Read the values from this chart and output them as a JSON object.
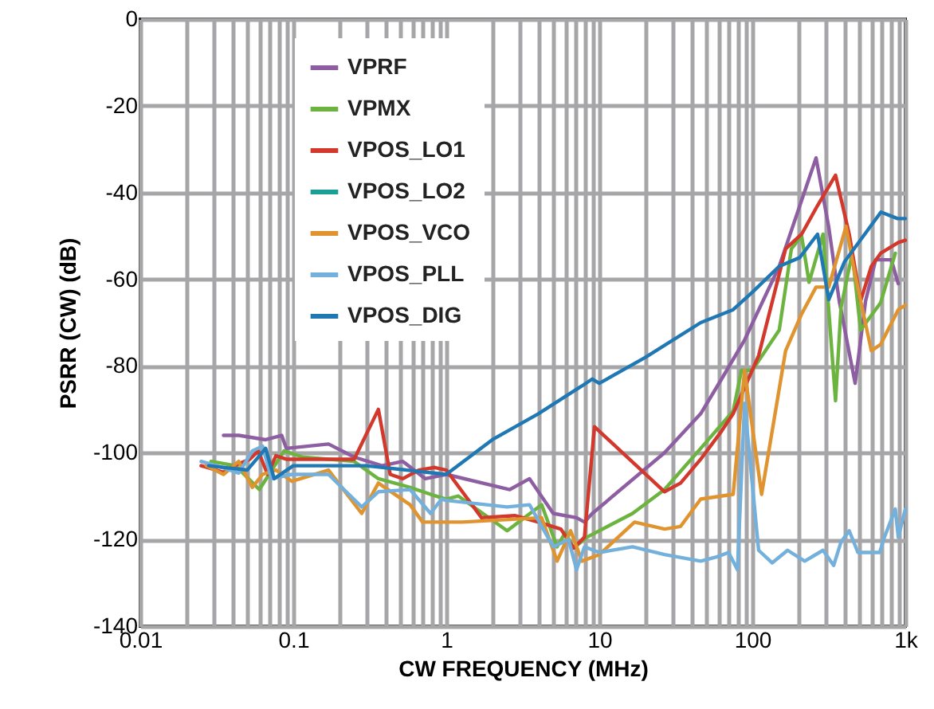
{
  "chart_data": {
    "type": "line",
    "xlabel": "CW FREQUENCY (MHz)",
    "ylabel": "PSRR (CW) (dB)",
    "log": "x",
    "grid": true,
    "legend": "top left",
    "line_style": "solid",
    "xlim": [
      0.01,
      1000
    ],
    "ylim": [
      -140,
      0
    ],
    "xticks": [
      0.01,
      {
        "value": 0.02,
        "label": null
      },
      {
        "value": 0.03,
        "label": null
      },
      {
        "value": 0.04,
        "label": null
      },
      {
        "value": 0.05,
        "label": null
      },
      {
        "value": 0.06,
        "label": null
      },
      {
        "value": 0.07,
        "label": null
      },
      {
        "value": 0.08,
        "label": null
      },
      {
        "value": 0.09,
        "label": null
      },
      0.1,
      {
        "value": 0.2,
        "label": null
      },
      {
        "value": 0.3,
        "label": null
      },
      {
        "value": 0.4,
        "label": null
      },
      {
        "value": 0.5,
        "label": null
      },
      {
        "value": 0.6,
        "label": null
      },
      {
        "value": 0.7,
        "label": null
      },
      {
        "value": 0.8,
        "label": null
      },
      {
        "value": 0.9,
        "label": null
      },
      1,
      {
        "value": 2,
        "label": null
      },
      {
        "value": 3,
        "label": null
      },
      {
        "value": 4,
        "label": null
      },
      {
        "value": 5,
        "label": null
      },
      {
        "value": 6,
        "label": null
      },
      {
        "value": 7,
        "label": null
      },
      {
        "value": 8,
        "label": null
      },
      {
        "value": 9,
        "label": null
      },
      10,
      {
        "value": 20,
        "label": null
      },
      {
        "value": 30,
        "label": null
      },
      {
        "value": 40,
        "label": null
      },
      {
        "value": 50,
        "label": null
      },
      {
        "value": 60,
        "label": null
      },
      {
        "value": 70,
        "label": null
      },
      {
        "value": 80,
        "label": null
      },
      {
        "value": 90,
        "label": null
      },
      100,
      {
        "value": 200,
        "label": null
      },
      {
        "value": 300,
        "label": null
      },
      {
        "value": 400,
        "label": null
      },
      {
        "value": 500,
        "label": null
      },
      {
        "value": 600,
        "label": null
      },
      {
        "value": 700,
        "label": null
      },
      {
        "value": 800,
        "label": null
      },
      {
        "value": 900,
        "label": null
      },
      {
        "value": 1000,
        "label": "1k"
      }
    ],
    "yticks": [
      -140,
      -120,
      -100,
      -80,
      -60,
      -40,
      -20,
      0
    ],
    "series": [
      {
        "name": "VPRF",
        "color": "#8e5ea2",
        "x": [
          0.035,
          0.044,
          0.066,
          0.084,
          0.09,
          0.17,
          0.25,
          0.38,
          0.52,
          0.73,
          1,
          2.6,
          3.5,
          5,
          7.1,
          8,
          9,
          26.7,
          46,
          63,
          89,
          150,
          261,
          316,
          370,
          470,
          550,
          640,
          810,
          900
        ],
        "values": [
          -96,
          -96,
          -97,
          -96,
          -99,
          -98,
          -101,
          -103,
          -102,
          -106,
          -105,
          -108.5,
          -106,
          -114,
          -115,
          -116,
          -114,
          -100,
          -91,
          -83,
          -74,
          -57,
          -32,
          -48,
          -65,
          -84,
          -65,
          -55.5,
          -55.5,
          -61
        ]
      },
      {
        "name": "VPMX",
        "color": "#6db33f",
        "x": [
          0.029,
          0.042,
          0.06,
          0.087,
          0.115,
          0.25,
          0.36,
          0.58,
          0.79,
          1,
          1.2,
          2.5,
          4.2,
          5.3,
          6,
          6.8,
          8.3,
          16.5,
          26.7,
          46,
          75,
          85,
          100,
          150,
          180,
          210,
          235,
          290,
          350,
          380,
          450,
          510,
          690,
          860
        ],
        "values": [
          -102,
          -103,
          -108.5,
          -99.6,
          -101,
          -102,
          -106,
          -108,
          -109.6,
          -110.7,
          -110,
          -118,
          -112,
          -121.7,
          -118.4,
          -122,
          -119.5,
          -114,
          -108.5,
          -99,
          -90.4,
          -81,
          -81,
          -71.7,
          -53,
          -50,
          -60.7,
          -49.6,
          -88,
          -66.5,
          -54,
          -71.7,
          -65.4,
          -54
        ]
      },
      {
        "name": "VPOS_LO1",
        "color": "#d2382b",
        "x": [
          0.025,
          0.035,
          0.041,
          0.052,
          0.059,
          0.068,
          0.077,
          0.09,
          0.25,
          0.36,
          0.43,
          0.52,
          0.66,
          0.84,
          1,
          1.7,
          2.8,
          4,
          5.6,
          6.8,
          8,
          9.3,
          26.7,
          34,
          46,
          63,
          75,
          110,
          165,
          210,
          267,
          350,
          430,
          510,
          600,
          690,
          900,
          1000
        ],
        "values": [
          -103,
          -104.5,
          -103,
          -101.5,
          -99.6,
          -105,
          -100.7,
          -101.5,
          -101.5,
          -90,
          -105,
          -106,
          -104,
          -103.4,
          -104,
          -115,
          -114.5,
          -116,
          -117.6,
          -122,
          -119.5,
          -94,
          -109,
          -107,
          -101.5,
          -95,
          -91,
          -77.6,
          -53,
          -49.6,
          -43,
          -36,
          -49.6,
          -65,
          -57,
          -54,
          -51.5,
          -51
        ]
      },
      {
        "name": "VPOS_LO2",
        "color": "#1a9e96"
      },
      {
        "name": "VPOS_VCO",
        "color": "#e0942f",
        "x": [
          0.027,
          0.035,
          0.044,
          0.054,
          0.063,
          0.077,
          0.098,
          0.17,
          0.28,
          0.36,
          0.58,
          0.7,
          1,
          1.27,
          4.2,
          5.3,
          6.5,
          7.7,
          10,
          17,
          26.7,
          34,
          46,
          75,
          89,
          115,
          165,
          210,
          261,
          316,
          410,
          470,
          600,
          690,
          900,
          1000
        ],
        "values": [
          -103,
          -105,
          -102,
          -108,
          -105,
          -104,
          -106.6,
          -104,
          -114,
          -107,
          -112,
          -116,
          -116,
          -116,
          -115,
          -125,
          -118,
          -125,
          -123.5,
          -116,
          -117.6,
          -117,
          -110.7,
          -109.6,
          -81,
          -109.6,
          -76.5,
          -68,
          -61.8,
          -61.8,
          -47.8,
          -59,
          -76.5,
          -75,
          -67,
          -66
        ]
      },
      {
        "name": "VPOS_PLL",
        "color": "#74b0dc",
        "x": [
          0.025,
          0.035,
          0.044,
          0.054,
          0.063,
          0.072,
          0.098,
          0.17,
          0.28,
          0.36,
          0.58,
          0.79,
          0.93,
          1,
          2.5,
          3.5,
          5,
          6.3,
          7.1,
          8,
          10,
          16.5,
          26.7,
          46,
          59,
          70,
          80,
          89,
          110,
          135,
          170,
          220,
          290,
          340,
          380,
          430,
          490,
          680,
          730,
          860,
          900,
          1000
        ],
        "values": [
          -102,
          -103.5,
          -104.7,
          -99.6,
          -98.5,
          -106,
          -105,
          -105,
          -112.5,
          -109,
          -108.5,
          -114,
          -110.7,
          -111,
          -112.5,
          -112,
          -121.7,
          -120,
          -127,
          -121.7,
          -123,
          -121.7,
          -123.5,
          -125,
          -124,
          -123,
          -127,
          -88.6,
          -122.5,
          -125.4,
          -122.5,
          -125,
          -122.5,
          -126,
          -120.6,
          -118,
          -123,
          -123,
          -119.5,
          -113,
          -119.5,
          -113
        ]
      },
      {
        "name": "VPOS_DIG",
        "color": "#1f78b4",
        "x": [
          0.028,
          0.05,
          0.066,
          0.075,
          0.1,
          0.3,
          1,
          2,
          4,
          7.7,
          9,
          10,
          20,
          46,
          75,
          100,
          150,
          204,
          267,
          316,
          400,
          693,
          890,
          1000
        ],
        "values": [
          -103,
          -104,
          -99,
          -106,
          -103,
          -103,
          -105,
          -97,
          -91,
          -84.6,
          -83,
          -84,
          -78,
          -70,
          -67,
          -63,
          -57,
          -55,
          -49.6,
          -64.7,
          -56,
          -44.5,
          -46,
          -46
        ]
      }
    ]
  }
}
